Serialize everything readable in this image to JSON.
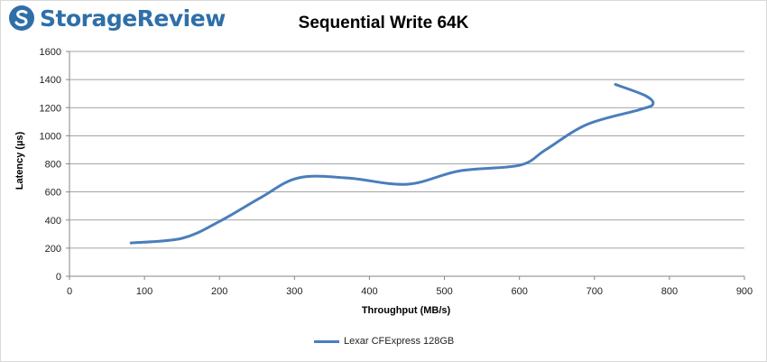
{
  "brand": {
    "name": "StorageReview"
  },
  "chart_data": {
    "type": "line",
    "title": "Sequential Write 64K",
    "xlabel": "Throughput (MB/s)",
    "ylabel": "Latency (µs)",
    "xlim": [
      0,
      900
    ],
    "ylim": [
      0,
      1600
    ],
    "xticks": [
      0,
      100,
      200,
      300,
      400,
      500,
      600,
      700,
      800,
      900
    ],
    "yticks": [
      0,
      200,
      400,
      600,
      800,
      1000,
      1200,
      1400,
      1600
    ],
    "grid": true,
    "legend_position": "bottom",
    "series": [
      {
        "name": "Lexar CFExpress 128GB",
        "color": "#4a7ebb",
        "points": [
          {
            "x": 82,
            "y": 237
          },
          {
            "x": 150,
            "y": 270
          },
          {
            "x": 200,
            "y": 390
          },
          {
            "x": 255,
            "y": 560
          },
          {
            "x": 305,
            "y": 700
          },
          {
            "x": 370,
            "y": 700
          },
          {
            "x": 450,
            "y": 655
          },
          {
            "x": 520,
            "y": 750
          },
          {
            "x": 600,
            "y": 790
          },
          {
            "x": 635,
            "y": 900
          },
          {
            "x": 690,
            "y": 1080
          },
          {
            "x": 760,
            "y": 1185
          },
          {
            "x": 778,
            "y": 1225
          },
          {
            "x": 768,
            "y": 1285
          },
          {
            "x": 728,
            "y": 1365
          }
        ]
      }
    ]
  }
}
